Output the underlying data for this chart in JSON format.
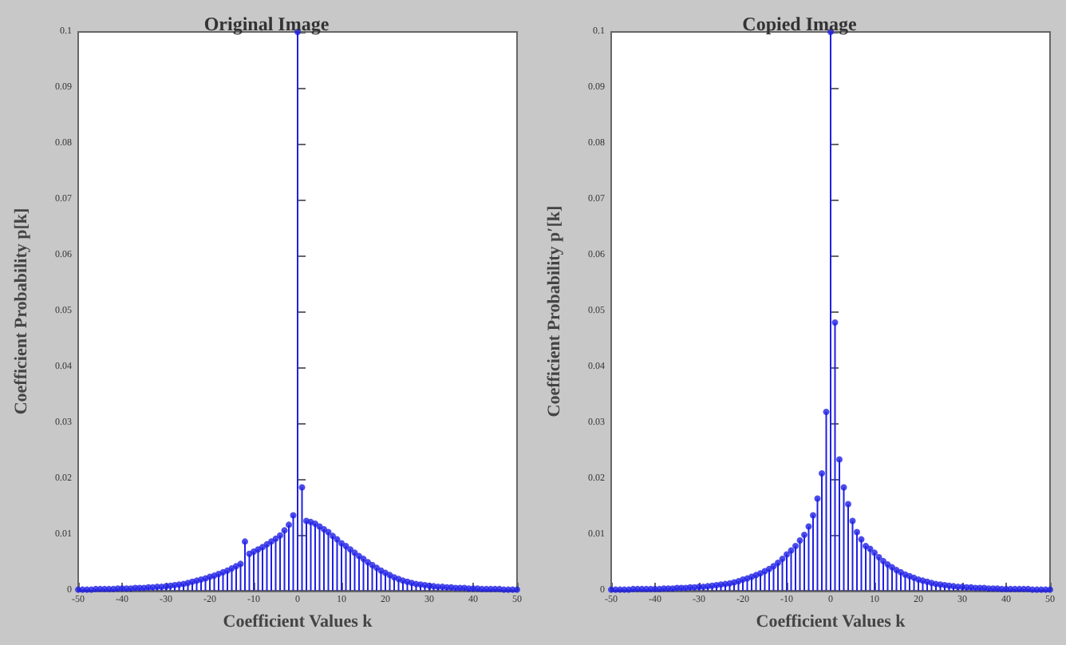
{
  "chart_data": [
    {
      "type": "lollipop",
      "title": "Original Image",
      "xlabel": "Coefficient Values k",
      "ylabel": "Coefficient Probability p[k]",
      "xlim": [
        -50,
        50
      ],
      "xticks": [
        -50,
        -40,
        -30,
        -20,
        -10,
        0,
        10,
        20,
        30,
        40,
        50
      ],
      "ylim": [
        0,
        0.1
      ],
      "yticks": [
        0,
        0.01,
        0.02,
        0.03,
        0.04,
        0.05,
        0.06,
        0.07,
        0.08,
        0.09,
        0.1
      ],
      "grid": false,
      "marker": "circle",
      "x": [
        -50,
        -49,
        -48,
        -47,
        -46,
        -45,
        -44,
        -43,
        -42,
        -41,
        -40,
        -39,
        -38,
        -37,
        -36,
        -35,
        -34,
        -33,
        -32,
        -31,
        -30,
        -29,
        -28,
        -27,
        -26,
        -25,
        -24,
        -23,
        -22,
        -21,
        -20,
        -19,
        -18,
        -17,
        -16,
        -15,
        -14,
        -13,
        -12,
        -11,
        -10,
        -9,
        -8,
        -7,
        -6,
        -5,
        -4,
        -3,
        -2,
        -1,
        0,
        1,
        2,
        3,
        4,
        5,
        6,
        7,
        8,
        9,
        10,
        11,
        12,
        13,
        14,
        15,
        16,
        17,
        18,
        19,
        20,
        21,
        22,
        23,
        24,
        25,
        26,
        27,
        28,
        29,
        30,
        31,
        32,
        33,
        34,
        35,
        36,
        37,
        38,
        39,
        40,
        41,
        42,
        43,
        44,
        45,
        46,
        47,
        48,
        49,
        50
      ],
      "series": [
        {
          "color": "#1f1fe6",
          "values": [
            0.0002,
            0.0002,
            0.0002,
            0.0002,
            0.0003,
            0.0003,
            0.0003,
            0.0003,
            0.0003,
            0.0004,
            0.0004,
            0.0004,
            0.0004,
            0.0005,
            0.0005,
            0.0005,
            0.0006,
            0.0006,
            0.0007,
            0.0007,
            0.0008,
            0.0009,
            0.001,
            0.0011,
            0.0012,
            0.0014,
            0.0016,
            0.0018,
            0.002,
            0.0022,
            0.0025,
            0.0027,
            0.003,
            0.0033,
            0.0036,
            0.004,
            0.0044,
            0.0048,
            0.0088,
            0.0066,
            0.007,
            0.0074,
            0.0078,
            0.0083,
            0.0088,
            0.0093,
            0.0099,
            0.0108,
            0.0118,
            0.0135,
            0.1,
            0.0185,
            0.0125,
            0.0123,
            0.012,
            0.0115,
            0.011,
            0.0105,
            0.0098,
            0.0092,
            0.0085,
            0.008,
            0.0074,
            0.0068,
            0.0062,
            0.0057,
            0.0051,
            0.0046,
            0.0041,
            0.0036,
            0.0032,
            0.0028,
            0.0024,
            0.0021,
            0.0018,
            0.0016,
            0.0014,
            0.0012,
            0.0011,
            0.001,
            0.0009,
            0.0008,
            0.0007,
            0.0007,
            0.0006,
            0.0006,
            0.0005,
            0.0005,
            0.0005,
            0.0004,
            0.0004,
            0.0004,
            0.0003,
            0.0003,
            0.0003,
            0.0003,
            0.0003,
            0.0002,
            0.0002,
            0.0002,
            0.0002
          ]
        }
      ]
    },
    {
      "type": "lollipop",
      "title": "Copied Image",
      "xlabel": "Coefficient Values k",
      "ylabel": "Coefficient Probability p′[k]",
      "xlim": [
        -50,
        50
      ],
      "xticks": [
        -50,
        -40,
        -30,
        -20,
        -10,
        0,
        10,
        20,
        30,
        40,
        50
      ],
      "ylim": [
        0,
        0.1
      ],
      "yticks": [
        0,
        0.01,
        0.02,
        0.03,
        0.04,
        0.05,
        0.06,
        0.07,
        0.08,
        0.09,
        0.1
      ],
      "grid": false,
      "marker": "circle",
      "x": [
        -50,
        -49,
        -48,
        -47,
        -46,
        -45,
        -44,
        -43,
        -42,
        -41,
        -40,
        -39,
        -38,
        -37,
        -36,
        -35,
        -34,
        -33,
        -32,
        -31,
        -30,
        -29,
        -28,
        -27,
        -26,
        -25,
        -24,
        -23,
        -22,
        -21,
        -20,
        -19,
        -18,
        -17,
        -16,
        -15,
        -14,
        -13,
        -12,
        -11,
        -10,
        -9,
        -8,
        -7,
        -6,
        -5,
        -4,
        -3,
        -2,
        -1,
        0,
        1,
        2,
        3,
        4,
        5,
        6,
        7,
        8,
        9,
        10,
        11,
        12,
        13,
        14,
        15,
        16,
        17,
        18,
        19,
        20,
        21,
        22,
        23,
        24,
        25,
        26,
        27,
        28,
        29,
        30,
        31,
        32,
        33,
        34,
        35,
        36,
        37,
        38,
        39,
        40,
        41,
        42,
        43,
        44,
        45,
        46,
        47,
        48,
        49,
        50
      ],
      "series": [
        {
          "color": "#1f1fe6",
          "values": [
            0.0002,
            0.0002,
            0.0002,
            0.0002,
            0.0002,
            0.0003,
            0.0003,
            0.0003,
            0.0003,
            0.0003,
            0.0003,
            0.0003,
            0.0004,
            0.0004,
            0.0004,
            0.0005,
            0.0005,
            0.0005,
            0.0006,
            0.0006,
            0.0007,
            0.0007,
            0.0008,
            0.0009,
            0.001,
            0.0011,
            0.0012,
            0.0013,
            0.0015,
            0.0017,
            0.002,
            0.0022,
            0.0025,
            0.0028,
            0.0031,
            0.0035,
            0.0039,
            0.0044,
            0.005,
            0.0057,
            0.0065,
            0.0072,
            0.008,
            0.009,
            0.01,
            0.0115,
            0.0135,
            0.0165,
            0.021,
            0.032,
            0.1,
            0.048,
            0.0235,
            0.0185,
            0.0155,
            0.0125,
            0.0105,
            0.0092,
            0.008,
            0.0075,
            0.0068,
            0.006,
            0.0053,
            0.0047,
            0.0042,
            0.0037,
            0.0033,
            0.0029,
            0.0026,
            0.0023,
            0.002,
            0.0018,
            0.0016,
            0.0014,
            0.0012,
            0.0011,
            0.001,
            0.0009,
            0.0008,
            0.0007,
            0.0007,
            0.0006,
            0.0006,
            0.0005,
            0.0005,
            0.0005,
            0.0004,
            0.0004,
            0.0004,
            0.0003,
            0.0003,
            0.0003,
            0.0003,
            0.0003,
            0.0003,
            0.0003,
            0.0002,
            0.0002,
            0.0002,
            0.0002,
            0.0002
          ]
        }
      ]
    }
  ]
}
